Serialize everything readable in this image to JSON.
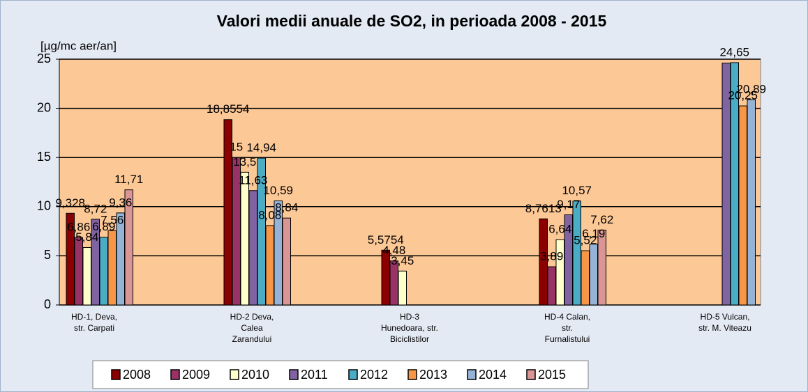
{
  "chart_data": {
    "type": "bar",
    "title": "Valori medii anuale de SO2, in perioada 2008 - 2015",
    "y_label": "[µg/mc aer/an]",
    "categories": [
      "HD-1, Deva,\nstr. Carpati",
      "HD-2 Deva,\nCalea\nZarandului",
      "HD-3\nHunedoara, str.\nBiciclistilor",
      "HD-4 Calan,\nstr.\nFurnalistului",
      "HD-5 Vulcan,\nstr. M. Viteazu"
    ],
    "series": [
      {
        "name": "2008",
        "color": "#8b0000",
        "values": [
          9.328,
          18.8554,
          5.5754,
          8.7613,
          null
        ],
        "value_labels": [
          "9,328",
          "18,8554",
          "5,5754",
          "8,7613",
          null
        ]
      },
      {
        "name": "2009",
        "color": "#993366",
        "values": [
          6.86,
          15,
          4.48,
          3.89,
          null
        ],
        "value_labels": [
          "6,86",
          "15",
          "4,48",
          "3,89",
          null
        ]
      },
      {
        "name": "2010",
        "color": "#ffffcc",
        "values": [
          5.84,
          13.5,
          3.45,
          6.64,
          null
        ],
        "value_labels": [
          "5,84",
          "13,5",
          "3,45",
          "6,64",
          null
        ]
      },
      {
        "name": "2011",
        "color": "#8064a2",
        "values": [
          8.72,
          11.63,
          null,
          9.17,
          24.6
        ],
        "value_labels": [
          "8,72",
          "11,63",
          null,
          "9,17",
          null
        ]
      },
      {
        "name": "2012",
        "color": "#4bacc6",
        "values": [
          6.89,
          14.94,
          null,
          10.57,
          24.65
        ],
        "value_labels": [
          "6,89",
          "14,94",
          null,
          "10,57",
          "24,65"
        ]
      },
      {
        "name": "2013",
        "color": "#f79646",
        "values": [
          7.56,
          8.08,
          null,
          5.52,
          20.25
        ],
        "value_labels": [
          "7,56",
          "8,08",
          null,
          "5,52",
          "20,25"
        ]
      },
      {
        "name": "2014",
        "color": "#95b3d7",
        "values": [
          9.36,
          10.59,
          null,
          6.19,
          20.89
        ],
        "value_labels": [
          "9,36",
          "10,59",
          null,
          "6,19",
          "20,89"
        ]
      },
      {
        "name": "2015",
        "color": "#d99694",
        "values": [
          11.71,
          8.84,
          null,
          7.62,
          null
        ],
        "value_labels": [
          "11,71",
          "8,84",
          null,
          "7,62",
          null
        ]
      }
    ],
    "ylim": [
      0,
      25
    ],
    "yticks": [
      0,
      5,
      10,
      15,
      20,
      25
    ],
    "grid": true
  }
}
